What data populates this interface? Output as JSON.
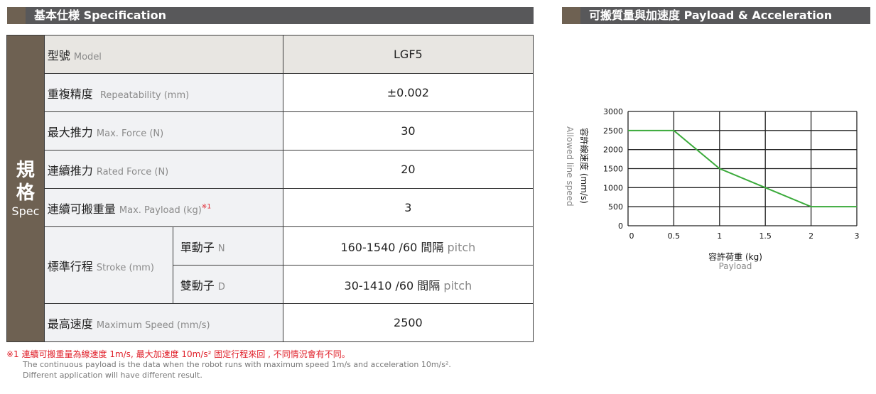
{
  "spec_header": "基本仕様 Specification",
  "chart_header": "可搬質量與加速度  Payload & Acceleration",
  "side": {
    "zh": "規格",
    "en": "Spec",
    "zh1": "規",
    "zh2": "格"
  },
  "rows": [
    {
      "zh": "型號",
      "en": "Model",
      "value": "LGF5"
    },
    {
      "zh": "重複精度",
      "en": "Repeatability (mm)",
      "value": "±0.002"
    },
    {
      "zh": "最大推力",
      "en": "Max. Force (N)",
      "value": "30"
    },
    {
      "zh": "連續推力",
      "en": "Rated Force (N)",
      "value": "20"
    },
    {
      "zh": "連續可搬重量",
      "en": "Max. Payload (kg)",
      "sup": "※1",
      "value": "3"
    },
    {
      "zh": "最高速度",
      "en": "Maximum Speed (mm/s)",
      "value": "2500"
    }
  ],
  "stroke": {
    "zh": "標準行程",
    "en": "Stroke (mm)",
    "sub": [
      {
        "zh": "單動子",
        "en": "N",
        "value": "160-1540 /60 間隔",
        "pitch": "pitch"
      },
      {
        "zh": "雙動子",
        "en": "D",
        "value": "30-1410 /60 間隔",
        "pitch": "pitch"
      }
    ]
  },
  "notes": {
    "zh": "※1 連續可搬重量為線速度 1m/s, 最大加速度 10m/s² 固定行程來回 , 不同情況會有不同。",
    "en1": "The continuous payload is the data when the robot runs with maximum speed 1m/s and acceleration 10m/s².",
    "en2": "Different application will have different result."
  },
  "chart_data": {
    "type": "line",
    "categories": [
      "0",
      "0.5",
      "1",
      "1.5",
      "2",
      "3"
    ],
    "x": [
      0,
      0.5,
      1,
      1.5,
      2,
      3
    ],
    "values": [
      2500,
      2500,
      1500,
      1000,
      500,
      500
    ],
    "xlabel": "容許荷重 (kg)",
    "xlabel_en": "Payload",
    "ylabel": "容許線速度 (mm/s)",
    "ylabel_en": "Allowed line speed",
    "ylim": [
      0,
      3000
    ],
    "yticks": [
      "0",
      "500",
      "1000",
      "1500",
      "2000",
      "2500",
      "3000"
    ],
    "grid": true,
    "line_color": "#3aaa3a"
  }
}
